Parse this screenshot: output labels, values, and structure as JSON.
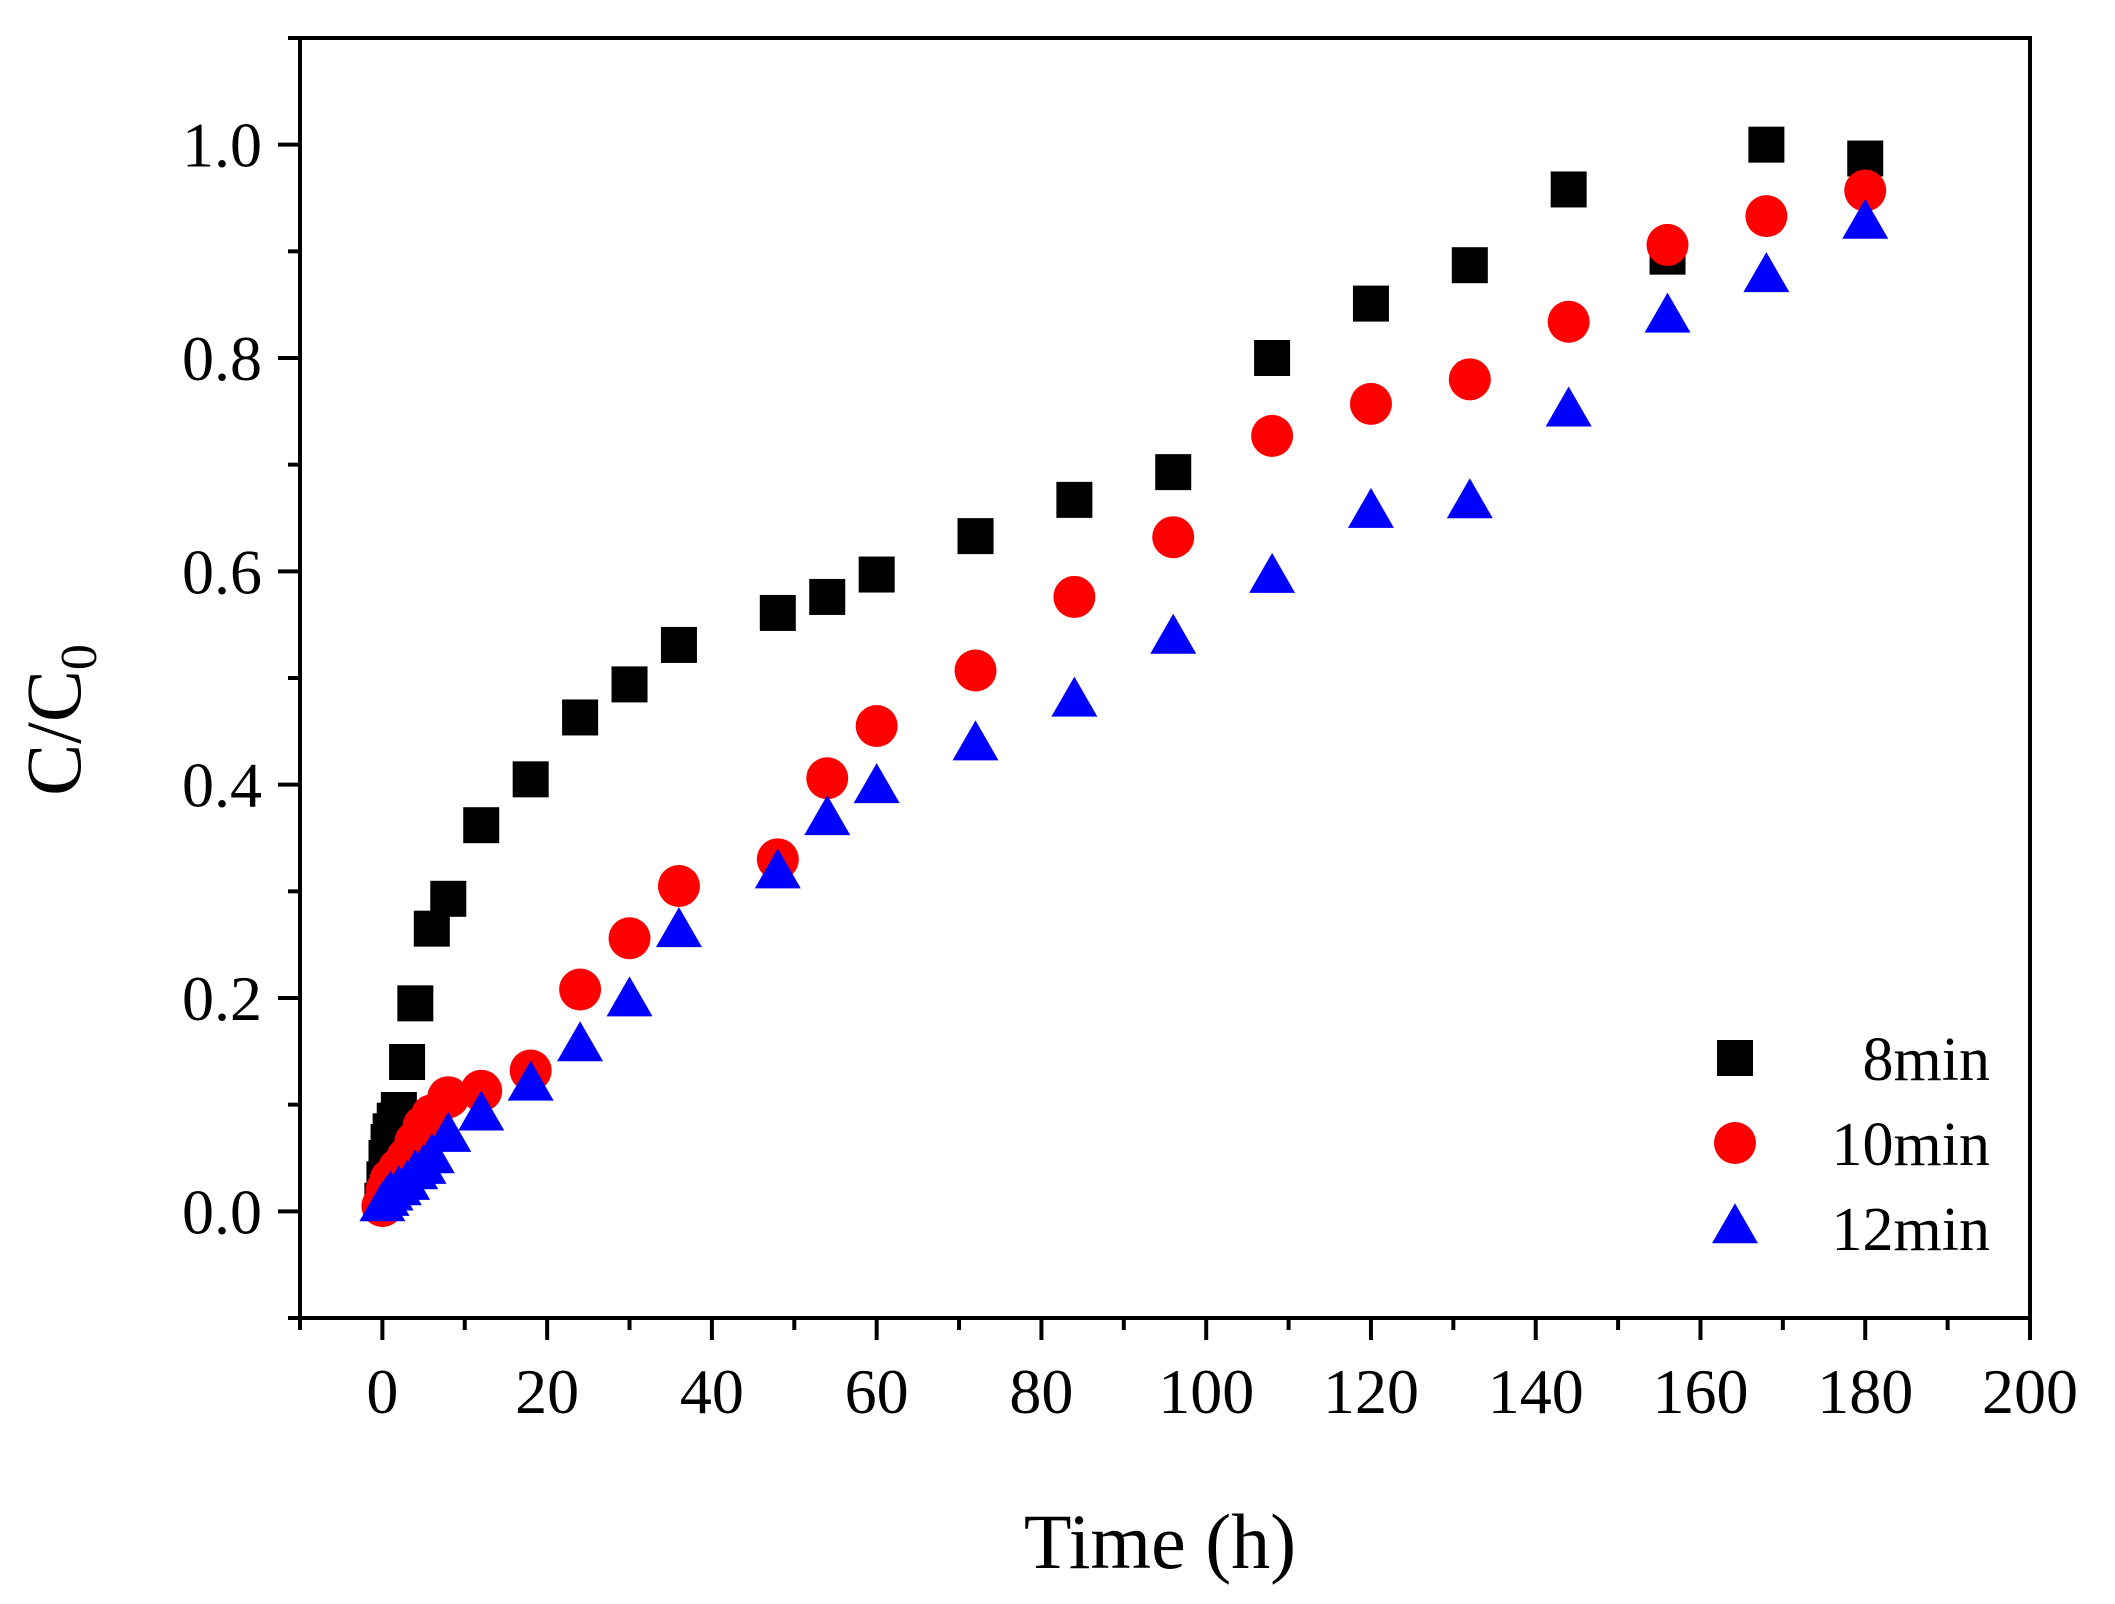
{
  "chart_data": {
    "type": "scatter",
    "title": "",
    "xlabel": "Time (h)",
    "ylabel_main": "C/C",
    "ylabel_sub": "0",
    "xlim": [
      -10,
      200
    ],
    "ylim": [
      -0.1,
      1.1
    ],
    "xticks": [
      0,
      20,
      40,
      60,
      80,
      100,
      120,
      140,
      160,
      180,
      200
    ],
    "xtick_labels": [
      "0",
      "20",
      "40",
      "60",
      "80",
      "100",
      "120",
      "140",
      "160",
      "180",
      "200"
    ],
    "yticks": [
      0.0,
      0.2,
      0.4,
      0.6,
      0.8,
      1.0
    ],
    "ytick_labels": [
      "0.0",
      "0.2",
      "0.4",
      "0.6",
      "0.8",
      "1.0"
    ],
    "legend_position": "bottom-right",
    "series": [
      {
        "name": "8min",
        "marker": "square",
        "color": "#000000",
        "x": [
          0,
          0.25,
          0.5,
          0.75,
          1,
          1.5,
          2,
          3,
          4,
          6,
          8,
          12,
          18,
          24,
          30,
          36,
          48,
          54,
          60,
          72,
          84,
          96,
          108,
          120,
          132,
          144,
          156,
          168,
          180
        ],
        "y": [
          0.01,
          0.03,
          0.05,
          0.065,
          0.075,
          0.085,
          0.095,
          0.14,
          0.195,
          0.265,
          0.293,
          0.362,
          0.405,
          0.463,
          0.494,
          0.531,
          0.561,
          0.576,
          0.597,
          0.633,
          0.667,
          0.693,
          0.8,
          0.851,
          0.887,
          0.958,
          0.895,
          1.0,
          0.987
        ]
      },
      {
        "name": "10min",
        "marker": "circle",
        "color": "#ff0000",
        "x": [
          0,
          0.5,
          1,
          2,
          3,
          4,
          5,
          6,
          8,
          12,
          18,
          24,
          30,
          36,
          48,
          54,
          60,
          72,
          84,
          96,
          108,
          120,
          132,
          144,
          156,
          168,
          180
        ],
        "y": [
          0.005,
          0.02,
          0.03,
          0.04,
          0.05,
          0.065,
          0.08,
          0.09,
          0.107,
          0.113,
          0.132,
          0.208,
          0.256,
          0.305,
          0.33,
          0.406,
          0.455,
          0.507,
          0.576,
          0.632,
          0.727,
          0.757,
          0.78,
          0.834,
          0.906,
          0.933,
          0.957
        ]
      },
      {
        "name": "12min",
        "marker": "triangle",
        "color": "#0000ff",
        "x": [
          0,
          0.5,
          1,
          2,
          3,
          4,
          5,
          6,
          8,
          12,
          18,
          24,
          30,
          36,
          48,
          54,
          60,
          72,
          84,
          96,
          108,
          120,
          132,
          144,
          156,
          168,
          180
        ],
        "y": [
          0.005,
          0.01,
          0.015,
          0.02,
          0.025,
          0.035,
          0.04,
          0.05,
          0.07,
          0.09,
          0.118,
          0.155,
          0.197,
          0.262,
          0.317,
          0.367,
          0.397,
          0.437,
          0.478,
          0.537,
          0.594,
          0.655,
          0.664,
          0.75,
          0.838,
          0.876,
          0.926
        ]
      }
    ]
  }
}
